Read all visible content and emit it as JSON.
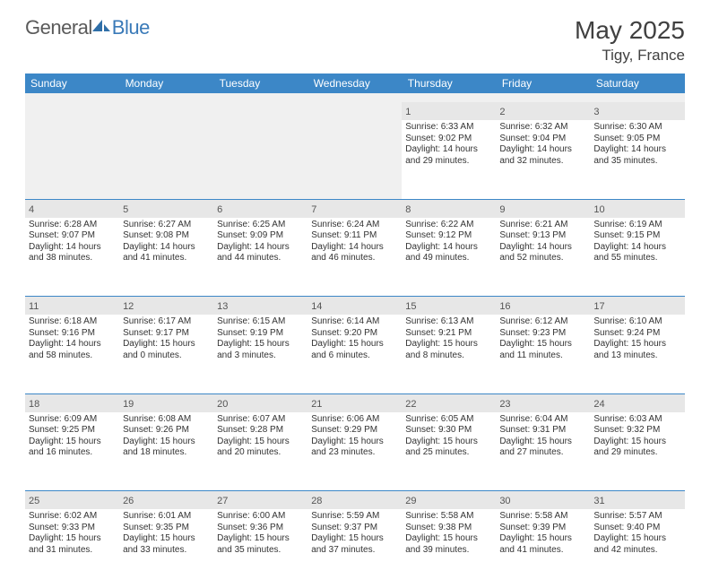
{
  "brand": {
    "left": "General",
    "right": "Blue"
  },
  "title": "May 2025",
  "location": "Tigy, France",
  "colors": {
    "header_bg": "#3c87c7",
    "header_text": "#ffffff",
    "daynum_bg": "#e7e7e7",
    "row_border": "#3c87c7",
    "logo_gray": "#5a5a5a",
    "logo_blue": "#3a7ab8"
  },
  "day_names": [
    "Sunday",
    "Monday",
    "Tuesday",
    "Wednesday",
    "Thursday",
    "Friday",
    "Saturday"
  ],
  "weeks": [
    [
      null,
      null,
      null,
      null,
      {
        "n": "1",
        "sr": "6:33 AM",
        "ss": "9:02 PM",
        "dl": "14 hours and 29 minutes."
      },
      {
        "n": "2",
        "sr": "6:32 AM",
        "ss": "9:04 PM",
        "dl": "14 hours and 32 minutes."
      },
      {
        "n": "3",
        "sr": "6:30 AM",
        "ss": "9:05 PM",
        "dl": "14 hours and 35 minutes."
      }
    ],
    [
      {
        "n": "4",
        "sr": "6:28 AM",
        "ss": "9:07 PM",
        "dl": "14 hours and 38 minutes."
      },
      {
        "n": "5",
        "sr": "6:27 AM",
        "ss": "9:08 PM",
        "dl": "14 hours and 41 minutes."
      },
      {
        "n": "6",
        "sr": "6:25 AM",
        "ss": "9:09 PM",
        "dl": "14 hours and 44 minutes."
      },
      {
        "n": "7",
        "sr": "6:24 AM",
        "ss": "9:11 PM",
        "dl": "14 hours and 46 minutes."
      },
      {
        "n": "8",
        "sr": "6:22 AM",
        "ss": "9:12 PM",
        "dl": "14 hours and 49 minutes."
      },
      {
        "n": "9",
        "sr": "6:21 AM",
        "ss": "9:13 PM",
        "dl": "14 hours and 52 minutes."
      },
      {
        "n": "10",
        "sr": "6:19 AM",
        "ss": "9:15 PM",
        "dl": "14 hours and 55 minutes."
      }
    ],
    [
      {
        "n": "11",
        "sr": "6:18 AM",
        "ss": "9:16 PM",
        "dl": "14 hours and 58 minutes."
      },
      {
        "n": "12",
        "sr": "6:17 AM",
        "ss": "9:17 PM",
        "dl": "15 hours and 0 minutes."
      },
      {
        "n": "13",
        "sr": "6:15 AM",
        "ss": "9:19 PM",
        "dl": "15 hours and 3 minutes."
      },
      {
        "n": "14",
        "sr": "6:14 AM",
        "ss": "9:20 PM",
        "dl": "15 hours and 6 minutes."
      },
      {
        "n": "15",
        "sr": "6:13 AM",
        "ss": "9:21 PM",
        "dl": "15 hours and 8 minutes."
      },
      {
        "n": "16",
        "sr": "6:12 AM",
        "ss": "9:23 PM",
        "dl": "15 hours and 11 minutes."
      },
      {
        "n": "17",
        "sr": "6:10 AM",
        "ss": "9:24 PM",
        "dl": "15 hours and 13 minutes."
      }
    ],
    [
      {
        "n": "18",
        "sr": "6:09 AM",
        "ss": "9:25 PM",
        "dl": "15 hours and 16 minutes."
      },
      {
        "n": "19",
        "sr": "6:08 AM",
        "ss": "9:26 PM",
        "dl": "15 hours and 18 minutes."
      },
      {
        "n": "20",
        "sr": "6:07 AM",
        "ss": "9:28 PM",
        "dl": "15 hours and 20 minutes."
      },
      {
        "n": "21",
        "sr": "6:06 AM",
        "ss": "9:29 PM",
        "dl": "15 hours and 23 minutes."
      },
      {
        "n": "22",
        "sr": "6:05 AM",
        "ss": "9:30 PM",
        "dl": "15 hours and 25 minutes."
      },
      {
        "n": "23",
        "sr": "6:04 AM",
        "ss": "9:31 PM",
        "dl": "15 hours and 27 minutes."
      },
      {
        "n": "24",
        "sr": "6:03 AM",
        "ss": "9:32 PM",
        "dl": "15 hours and 29 minutes."
      }
    ],
    [
      {
        "n": "25",
        "sr": "6:02 AM",
        "ss": "9:33 PM",
        "dl": "15 hours and 31 minutes."
      },
      {
        "n": "26",
        "sr": "6:01 AM",
        "ss": "9:35 PM",
        "dl": "15 hours and 33 minutes."
      },
      {
        "n": "27",
        "sr": "6:00 AM",
        "ss": "9:36 PM",
        "dl": "15 hours and 35 minutes."
      },
      {
        "n": "28",
        "sr": "5:59 AM",
        "ss": "9:37 PM",
        "dl": "15 hours and 37 minutes."
      },
      {
        "n": "29",
        "sr": "5:58 AM",
        "ss": "9:38 PM",
        "dl": "15 hours and 39 minutes."
      },
      {
        "n": "30",
        "sr": "5:58 AM",
        "ss": "9:39 PM",
        "dl": "15 hours and 41 minutes."
      },
      {
        "n": "31",
        "sr": "5:57 AM",
        "ss": "9:40 PM",
        "dl": "15 hours and 42 minutes."
      }
    ]
  ],
  "labels": {
    "sunrise": "Sunrise: ",
    "sunset": "Sunset: ",
    "daylight": "Daylight: "
  }
}
